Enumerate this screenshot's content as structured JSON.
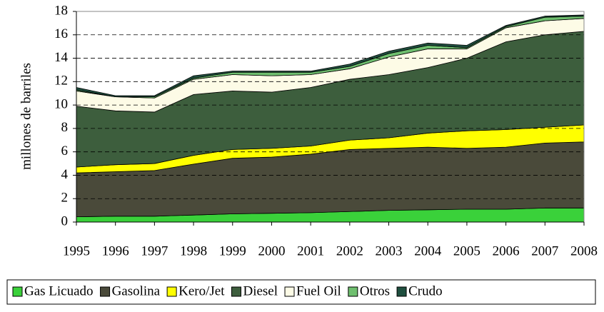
{
  "chart_data": {
    "type": "stacked-area",
    "y_label": "millones de barriles",
    "categories": [
      "1995",
      "1996",
      "1997",
      "1998",
      "1999",
      "2000",
      "2001",
      "2002",
      "2003",
      "2004",
      "2005",
      "2006",
      "2007",
      "2008"
    ],
    "ylim": [
      0,
      18
    ],
    "yticks": [
      0,
      2,
      4,
      6,
      8,
      10,
      12,
      14,
      16,
      18
    ],
    "grid": true,
    "legend": "bottom",
    "series": [
      {
        "name": "Gas Licuado",
        "color": "#3ad13a",
        "values": [
          0.45,
          0.5,
          0.5,
          0.6,
          0.7,
          0.75,
          0.8,
          0.9,
          1.0,
          1.05,
          1.1,
          1.1,
          1.2,
          1.2
        ]
      },
      {
        "name": "Gasolina",
        "color": "#4a4a3a",
        "values": [
          3.75,
          3.8,
          3.9,
          4.35,
          4.75,
          4.8,
          5.0,
          5.3,
          5.3,
          5.35,
          5.2,
          5.3,
          5.55,
          5.65
        ]
      },
      {
        "name": "Kero/Jet",
        "color": "#ffff00",
        "values": [
          0.5,
          0.6,
          0.6,
          0.75,
          0.75,
          0.75,
          0.7,
          0.8,
          0.9,
          1.2,
          1.5,
          1.5,
          1.35,
          1.45
        ]
      },
      {
        "name": "Diesel",
        "color": "#3d5e3d",
        "values": [
          5.2,
          4.6,
          4.4,
          5.2,
          5.0,
          4.8,
          5.0,
          5.2,
          5.4,
          5.6,
          6.2,
          7.5,
          7.9,
          8.0
        ]
      },
      {
        "name": "Fuel Oil",
        "color": "#fdfbe6",
        "values": [
          1.3,
          1.2,
          1.2,
          1.3,
          1.4,
          1.4,
          1.1,
          0.9,
          1.5,
          1.6,
          0.8,
          1.2,
          1.2,
          1.1
        ]
      },
      {
        "name": "Otros",
        "color": "#6fbf6f",
        "values": [
          0.1,
          0.0,
          0.1,
          0.1,
          0.2,
          0.3,
          0.2,
          0.2,
          0.3,
          0.3,
          0.1,
          0.1,
          0.3,
          0.2
        ]
      },
      {
        "name": "Crudo",
        "color": "#1f4f3f",
        "values": [
          0.2,
          0.1,
          0.1,
          0.2,
          0.1,
          0.1,
          0.1,
          0.2,
          0.2,
          0.2,
          0.2,
          0.1,
          0.1,
          0.1
        ]
      }
    ]
  }
}
